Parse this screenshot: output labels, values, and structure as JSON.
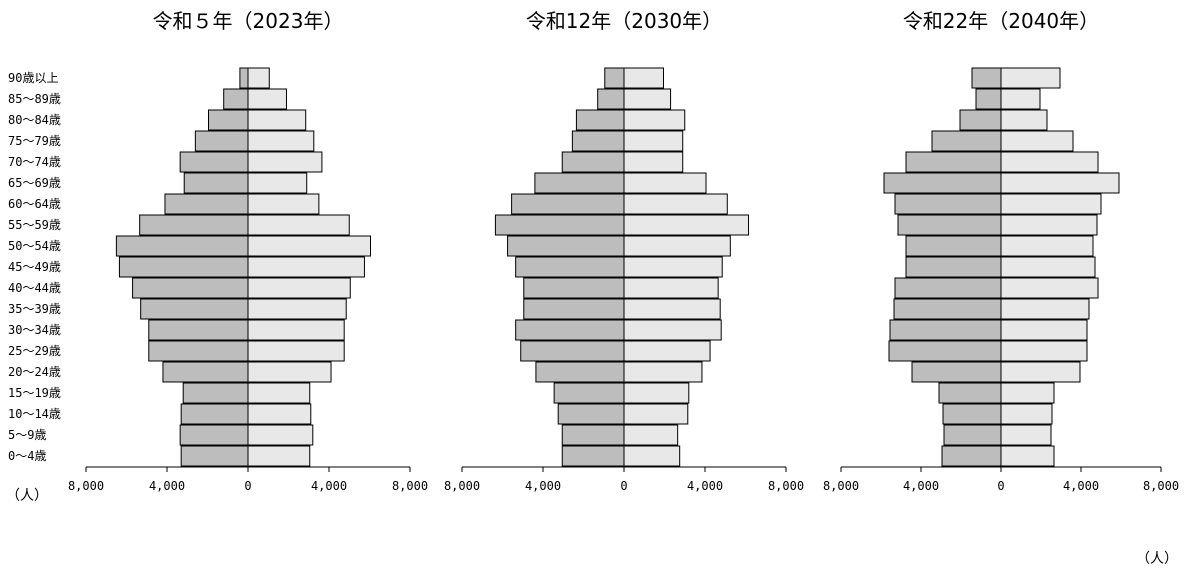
{
  "unit_label_left": "（人）",
  "unit_label_bottom": "（人）",
  "age_groups": [
    "90歳以上",
    "85～89歳",
    "80～84歳",
    "75～79歳",
    "70～74歳",
    "65～69歳",
    "60～64歳",
    "55～59歳",
    "50～54歳",
    "45～49歳",
    "40～44歳",
    "35～39歳",
    "30～34歳",
    "25～29歳",
    "20～24歳",
    "15～19歳",
    "10～14歳",
    "5～9歳",
    "0～4歳"
  ],
  "chart_data": [
    {
      "type": "bar",
      "title": "令和５年（2023年）",
      "categories": [
        "90歳以上",
        "85～89歳",
        "80～84歳",
        "75～79歳",
        "70～74歳",
        "65～69歳",
        "60～64歳",
        "55～59歳",
        "50～54歳",
        "45～49歳",
        "40～44歳",
        "35～39歳",
        "30～34歳",
        "25～29歳",
        "20～24歳",
        "15～19歳",
        "10～14歳",
        "5～9歳",
        "0～4歳"
      ],
      "series": [
        {
          "values": [
            400,
            1200,
            1950,
            2600,
            3350,
            3150,
            4100,
            5350,
            6500,
            6350,
            5700,
            5300,
            4900,
            4900,
            4200,
            3200,
            3300,
            3350,
            3300
          ]
        },
        {
          "values": [
            1050,
            1900,
            2850,
            3250,
            3650,
            2900,
            3500,
            5000,
            6050,
            5750,
            5050,
            4850,
            4750,
            4750,
            4100,
            3050,
            3100,
            3200,
            3050
          ]
        }
      ],
      "xlim": [
        -8000,
        8000
      ],
      "xticks": [
        "8,000",
        "4,000",
        "0",
        "4,000",
        "8,000"
      ]
    },
    {
      "type": "bar",
      "title": "令和12年（2030年）",
      "categories": [
        "90歳以上",
        "85～89歳",
        "80～84歳",
        "75～79歳",
        "70～74歳",
        "65～69歳",
        "60～64歳",
        "55～59歳",
        "50～54歳",
        "45～49歳",
        "40～44歳",
        "35～39歳",
        "30～34歳",
        "25～29歳",
        "20～24歳",
        "15～19歳",
        "10～14歳",
        "5～9歳",
        "0～4歳"
      ],
      "series": [
        {
          "values": [
            950,
            1300,
            2350,
            2550,
            3050,
            4400,
            5550,
            6350,
            5750,
            5350,
            4950,
            4950,
            5350,
            5100,
            4350,
            3450,
            3250,
            3050,
            3050
          ]
        },
        {
          "values": [
            1950,
            2300,
            3000,
            2900,
            2900,
            4050,
            5100,
            6150,
            5250,
            4850,
            4650,
            4750,
            4800,
            4250,
            3850,
            3200,
            3150,
            2650,
            2750
          ]
        }
      ],
      "xlim": [
        -8000,
        8000
      ],
      "xticks": [
        "8,000",
        "4,000",
        "0",
        "4,000",
        "8,000"
      ]
    },
    {
      "type": "bar",
      "title": "令和22年（2040年）",
      "categories": [
        "90歳以上",
        "85～89歳",
        "80～84歳",
        "75～79歳",
        "70～74歳",
        "65～69歳",
        "60～64歳",
        "55～59歳",
        "50～54歳",
        "45～49歳",
        "40～44歳",
        "35～39歳",
        "30～34歳",
        "25～29歳",
        "20～24歳",
        "15～19歳",
        "10～14歳",
        "5～9歳",
        "0～4歳"
      ],
      "series": [
        {
          "values": [
            1450,
            1250,
            2050,
            3450,
            4750,
            5850,
            5300,
            5150,
            4750,
            4750,
            5300,
            5350,
            5550,
            5600,
            4450,
            3100,
            2900,
            2850,
            2950
          ]
        },
        {
          "values": [
            2950,
            1950,
            2300,
            3600,
            4850,
            5900,
            5000,
            4800,
            4600,
            4700,
            4850,
            4400,
            4300,
            4300,
            3950,
            2650,
            2550,
            2500,
            2650
          ]
        }
      ],
      "xlim": [
        -8000,
        8000
      ],
      "xticks": [
        "8,000",
        "4,000",
        "0",
        "4,000",
        "8,000"
      ]
    }
  ]
}
